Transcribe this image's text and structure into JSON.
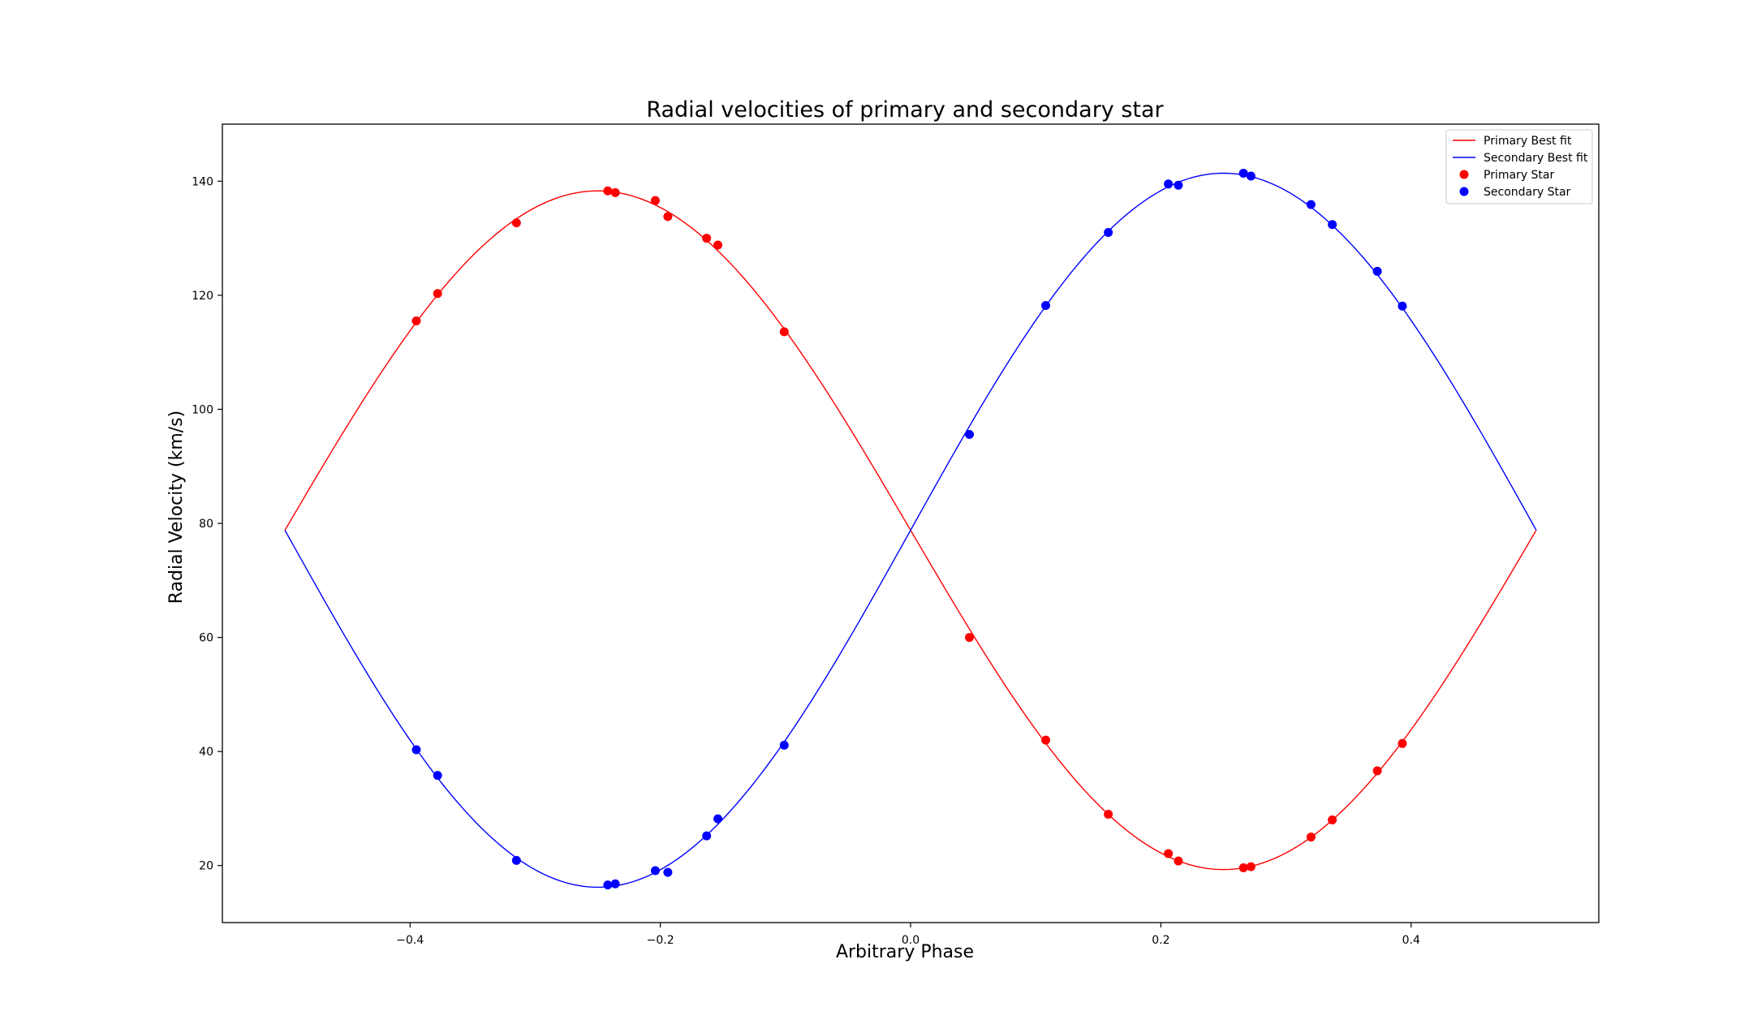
{
  "chart_data": {
    "type": "scatter",
    "title": "Radial velocities of primary and secondary star",
    "xlabel": "Arbitrary Phase",
    "ylabel": "Radial Velocity (km/s)",
    "xlim": [
      -0.55,
      0.55
    ],
    "ylim": [
      10,
      150
    ],
    "xticks": [
      -0.4,
      -0.2,
      0.0,
      0.2,
      0.4
    ],
    "xtick_labels": [
      "−0.4",
      "−0.2",
      "0.0",
      "0.2",
      "0.4"
    ],
    "yticks": [
      20,
      40,
      60,
      80,
      100,
      120,
      140
    ],
    "ytick_labels": [
      "20",
      "40",
      "60",
      "80",
      "100",
      "120",
      "140"
    ],
    "grid": false,
    "legend_position": "top-right",
    "fits": [
      {
        "name": "Primary Best fit",
        "color": "#ff0000",
        "gamma": 78.8,
        "amplitude": 59.5,
        "phase_offset": -0.25,
        "x_range": [
          -0.5,
          0.5
        ]
      },
      {
        "name": "Secondary Best fit",
        "color": "#0000ff",
        "gamma": 78.8,
        "amplitude": 62.6,
        "phase_offset": 0.25,
        "x_range": [
          -0.5,
          0.5
        ]
      }
    ],
    "series": [
      {
        "name": "Primary Star",
        "color": "#ff0000",
        "points": [
          [
            -0.395,
            115.5
          ],
          [
            -0.378,
            120.3
          ],
          [
            -0.315,
            132.7
          ],
          [
            -0.242,
            138.3
          ],
          [
            -0.236,
            138.0
          ],
          [
            -0.204,
            136.6
          ],
          [
            -0.194,
            133.8
          ],
          [
            -0.163,
            130.0
          ],
          [
            -0.154,
            128.8
          ],
          [
            -0.101,
            113.6
          ],
          [
            0.047,
            60.0
          ],
          [
            0.108,
            42.0
          ],
          [
            0.158,
            29.0
          ],
          [
            0.206,
            22.1
          ],
          [
            0.214,
            20.8
          ],
          [
            0.266,
            19.6
          ],
          [
            0.272,
            19.8
          ],
          [
            0.32,
            25.0
          ],
          [
            0.337,
            28.0
          ],
          [
            0.373,
            36.6
          ],
          [
            0.393,
            41.4
          ]
        ]
      },
      {
        "name": "Secondary Star",
        "color": "#0000ff",
        "points": [
          [
            -0.395,
            40.3
          ],
          [
            -0.378,
            35.8
          ],
          [
            -0.315,
            20.9
          ],
          [
            -0.242,
            16.6
          ],
          [
            -0.236,
            16.8
          ],
          [
            -0.204,
            19.1
          ],
          [
            -0.194,
            18.8
          ],
          [
            -0.163,
            25.2
          ],
          [
            -0.154,
            28.2
          ],
          [
            -0.101,
            41.1
          ],
          [
            0.047,
            95.6
          ],
          [
            0.108,
            118.2
          ],
          [
            0.158,
            131.0
          ],
          [
            0.206,
            139.5
          ],
          [
            0.214,
            139.3
          ],
          [
            0.266,
            141.4
          ],
          [
            0.272,
            140.9
          ],
          [
            0.32,
            135.9
          ],
          [
            0.337,
            132.4
          ],
          [
            0.373,
            124.2
          ],
          [
            0.393,
            118.1
          ]
        ]
      }
    ]
  }
}
